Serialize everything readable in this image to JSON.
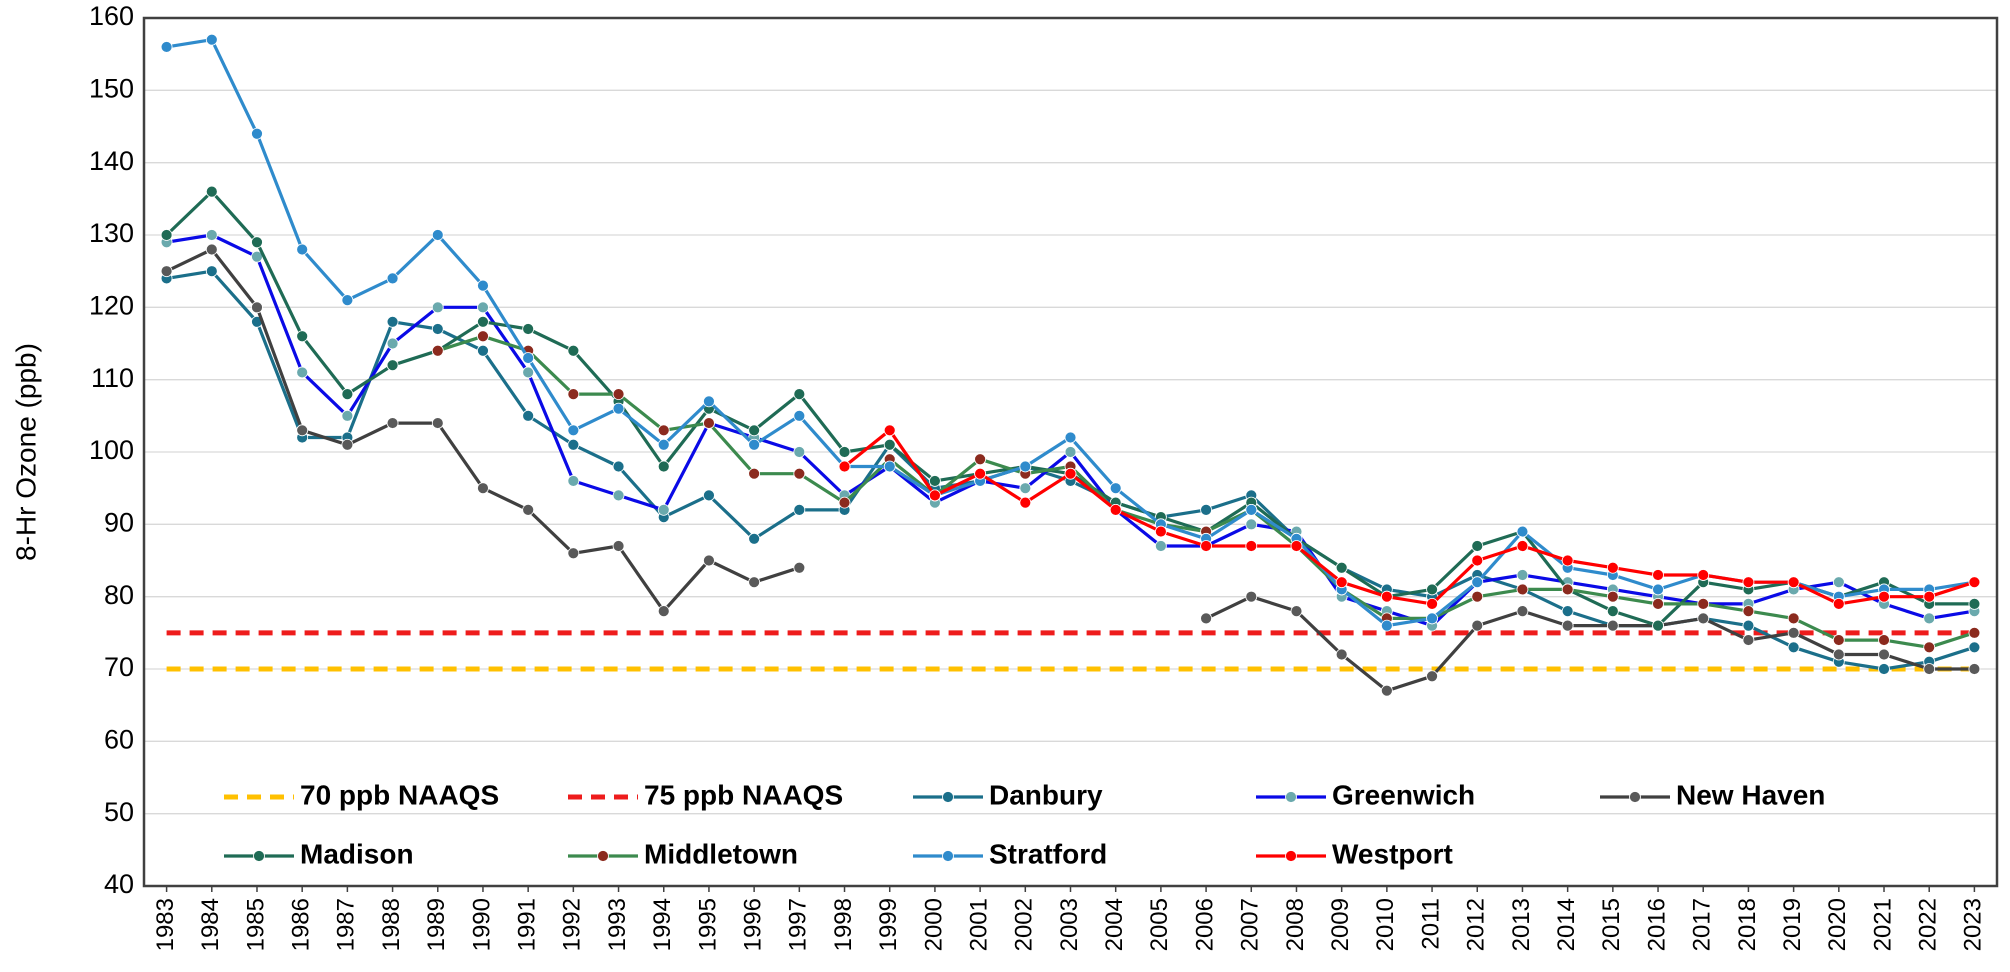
{
  "chart_data": {
    "type": "line",
    "y_label": "8-Hr Ozone (ppb)",
    "categories": [
      "1983",
      "1984",
      "1985",
      "1986",
      "1987",
      "1988",
      "1989",
      "1990",
      "1991",
      "1992",
      "1993",
      "1994",
      "1995",
      "1996",
      "1997",
      "1998",
      "1999",
      "2000",
      "2001",
      "2002",
      "2003",
      "2004",
      "2005",
      "2006",
      "2007",
      "2008",
      "2009",
      "2010",
      "2011",
      "2012",
      "2013",
      "2014",
      "2015",
      "2016",
      "2017",
      "2018",
      "2019",
      "2020",
      "2021",
      "2022",
      "2023"
    ],
    "ylim": [
      40,
      160
    ],
    "yticks": [
      40,
      50,
      60,
      70,
      80,
      90,
      100,
      110,
      120,
      130,
      140,
      150,
      160
    ],
    "grid": true,
    "reference_lines": [
      {
        "name": "70 ppb NAAQS",
        "color": "#ffc000",
        "value": 70
      },
      {
        "name": "75 ppb NAAQS",
        "color": "#ee1c1c",
        "value": 75
      }
    ],
    "series": [
      {
        "name": "Danbury",
        "color": "#1b6f8a",
        "marker_color": "#1b6f8a",
        "values": [
          124,
          125,
          118,
          102,
          102,
          118,
          117,
          114,
          105,
          101,
          98,
          91,
          94,
          88,
          92,
          92,
          101,
          95,
          96,
          98,
          96,
          93,
          91,
          92,
          94,
          88,
          84,
          81,
          80,
          83,
          81,
          78,
          76,
          76,
          77,
          76,
          73,
          71,
          70,
          71,
          73
        ]
      },
      {
        "name": "Greenwich",
        "color": "#0a0ae6",
        "marker_color": "#6aa9ad",
        "values": [
          129,
          130,
          127,
          111,
          105,
          115,
          120,
          120,
          111,
          96,
          94,
          92,
          104,
          102,
          100,
          94,
          98,
          93,
          96,
          95,
          100,
          92,
          87,
          87,
          90,
          89,
          80,
          78,
          76,
          82,
          83,
          82,
          81,
          80,
          79,
          79,
          81,
          82,
          79,
          77,
          78
        ]
      },
      {
        "name": "New Haven",
        "color": "#404040",
        "marker_color": "#595959",
        "values": [
          125,
          128,
          120,
          103,
          101,
          104,
          104,
          95,
          92,
          86,
          87,
          78,
          85,
          82,
          84,
          null,
          null,
          null,
          null,
          null,
          null,
          null,
          null,
          77,
          80,
          78,
          72,
          67,
          69,
          76,
          78,
          76,
          76,
          76,
          77,
          74,
          75,
          72,
          72,
          70,
          70
        ]
      },
      {
        "name": "Madison",
        "color": "#1f6b55",
        "marker_color": "#1f6b55",
        "values": [
          130,
          136,
          129,
          116,
          108,
          112,
          114,
          118,
          117,
          114,
          107,
          98,
          106,
          103,
          108,
          100,
          101,
          96,
          97,
          98,
          97,
          93,
          91,
          89,
          93,
          88,
          84,
          80,
          81,
          87,
          89,
          81,
          78,
          76,
          82,
          81,
          82,
          80,
          82,
          79,
          79
        ]
      },
      {
        "name": "Middletown",
        "color": "#3c8a4e",
        "marker_color": "#8b2a1e",
        "values": [
          null,
          null,
          null,
          null,
          null,
          null,
          114,
          116,
          114,
          108,
          108,
          103,
          104,
          97,
          97,
          93,
          99,
          94,
          99,
          97,
          98,
          92,
          90,
          89,
          92,
          87,
          81,
          77,
          77,
          80,
          81,
          81,
          80,
          79,
          79,
          78,
          77,
          74,
          74,
          73,
          75
        ]
      },
      {
        "name": "Stratford",
        "color": "#2f8bcc",
        "marker_color": "#2f8bcc",
        "values": [
          156,
          157,
          144,
          128,
          121,
          124,
          130,
          123,
          113,
          103,
          106,
          101,
          107,
          101,
          105,
          98,
          98,
          94,
          96,
          98,
          102,
          95,
          90,
          88,
          92,
          88,
          81,
          76,
          77,
          82,
          89,
          84,
          83,
          81,
          83,
          82,
          82,
          80,
          81,
          81,
          82
        ]
      },
      {
        "name": "Westport",
        "color": "#ff0000",
        "marker_color": "#ff0000",
        "values": [
          null,
          null,
          null,
          null,
          null,
          null,
          null,
          null,
          null,
          null,
          null,
          null,
          null,
          null,
          null,
          98,
          103,
          94,
          97,
          93,
          97,
          92,
          89,
          87,
          87,
          87,
          82,
          80,
          79,
          85,
          87,
          85,
          84,
          83,
          83,
          82,
          82,
          79,
          80,
          80,
          82
        ]
      }
    ]
  }
}
